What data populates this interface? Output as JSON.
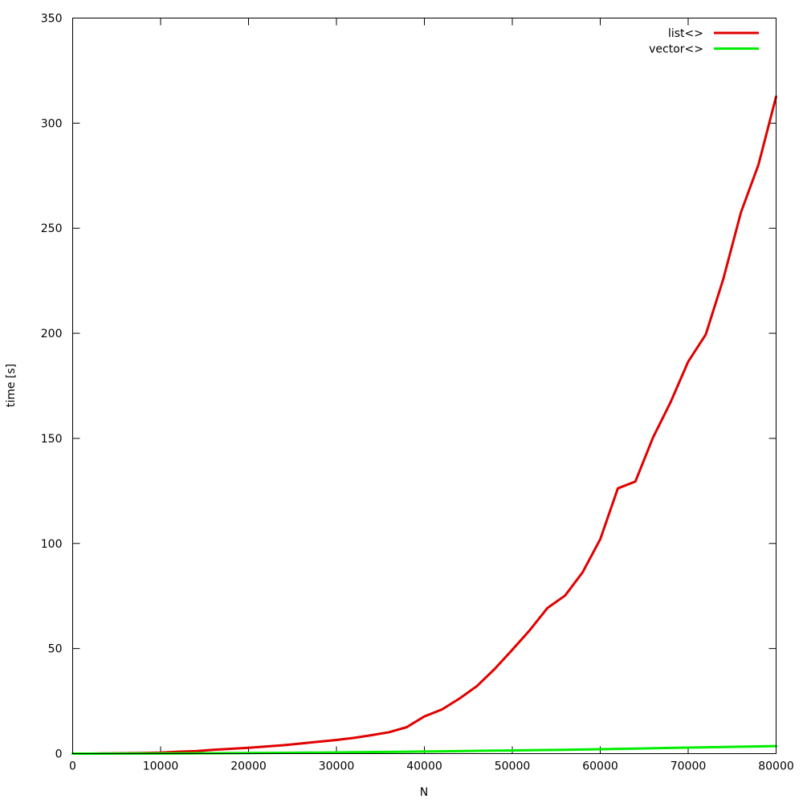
{
  "chart_data": {
    "type": "line",
    "title": "",
    "xlabel": "N",
    "ylabel": "time [s]",
    "xlim": [
      0,
      80000
    ],
    "ylim": [
      0,
      350
    ],
    "xticks": [
      "0",
      "10000",
      "20000",
      "30000",
      "40000",
      "50000",
      "60000",
      "70000",
      "80000"
    ],
    "yticks": [
      "0",
      "50",
      "100",
      "150",
      "200",
      "250",
      "300",
      "350"
    ],
    "grid": false,
    "legend": "top-right",
    "series": [
      {
        "name": "list<>",
        "color": "#e00000",
        "x": [
          0,
          2000,
          4000,
          6000,
          8000,
          10000,
          12000,
          14000,
          16000,
          18000,
          20000,
          22000,
          24000,
          26000,
          28000,
          30000,
          32000,
          34000,
          36000,
          38000,
          40000,
          42000,
          44000,
          46000,
          48000,
          50000,
          52000,
          54000,
          56000,
          58000,
          60000,
          62000,
          64000,
          66000,
          68000,
          70000,
          72000,
          74000,
          76000,
          78000,
          80000
        ],
        "values": [
          0,
          0,
          0.1,
          0.2,
          0.3,
          0.5,
          0.9,
          1.2,
          1.8,
          2.3,
          2.8,
          3.4,
          4,
          4.8,
          5.7,
          6.5,
          7.5,
          8.8,
          10.2,
          12.6,
          17.7,
          21,
          26.2,
          32.2,
          40.3,
          49.4,
          58.8,
          69.3,
          75.2,
          86.3,
          102,
          126.2,
          129.5,
          150.4,
          167.2,
          186.5,
          199.4,
          225.9,
          257.5,
          280.3,
          312.6
        ]
      },
      {
        "name": "vector<>",
        "color": "#00ee00",
        "x": [
          0,
          4000,
          8000,
          12000,
          16000,
          20000,
          24000,
          28000,
          32000,
          36000,
          40000,
          44000,
          48000,
          52000,
          56000,
          60000,
          64000,
          68000,
          72000,
          76000,
          80000
        ],
        "values": [
          0,
          0,
          0.05,
          0.1,
          0.2,
          0.3,
          0.4,
          0.5,
          0.65,
          0.8,
          1,
          1.2,
          1.4,
          1.6,
          1.8,
          2.1,
          2.4,
          2.7,
          3,
          3.3,
          3.6
        ]
      }
    ]
  }
}
